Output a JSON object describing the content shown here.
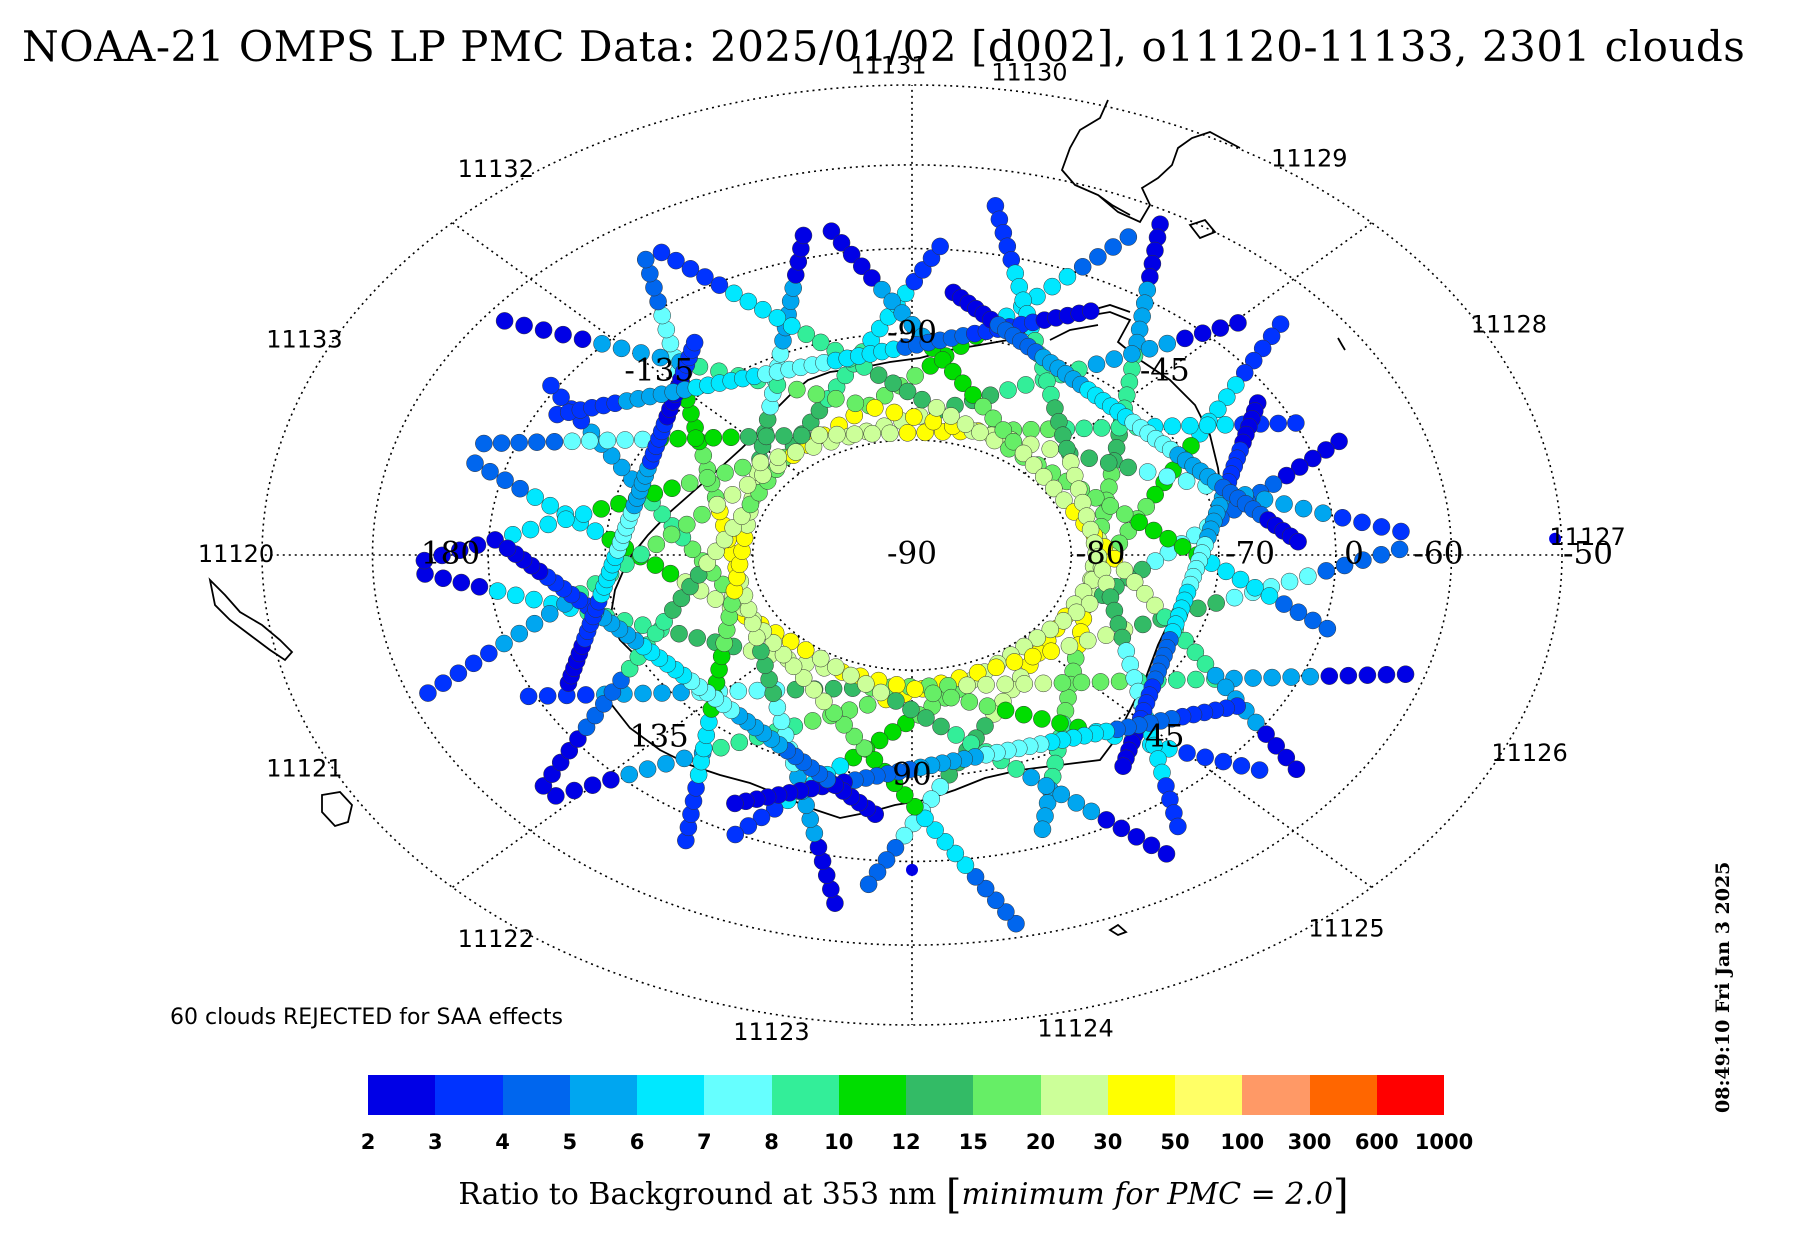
{
  "title": "NOAA-21 OMPS LP PMC Data: 2025/01/02 [d002], o11120-11133, 2301 clouds",
  "orbit_labels": [
    {
      "text": "11120",
      "angle": 180
    },
    {
      "text": "11121",
      "angle": 154
    },
    {
      "text": "11122",
      "angle": 128
    },
    {
      "text": "11123",
      "angle": 102
    },
    {
      "text": "11124",
      "angle": 76
    },
    {
      "text": "11125",
      "angle": 50
    },
    {
      "text": "11126",
      "angle": 24
    },
    {
      "text": "11127",
      "angle": -2
    },
    {
      "text": "11128",
      "angle": -28
    },
    {
      "text": "11129",
      "angle": -54
    },
    {
      "text": "11130",
      "angle": -80
    },
    {
      "text": "11131",
      "angle": -92
    },
    {
      "text": "11132",
      "angle": -128
    },
    {
      "text": "11133",
      "angle": -154
    }
  ],
  "grid_labels": [
    {
      "text": "-90",
      "angle": -90,
      "radius": 0.47
    },
    {
      "text": "-135",
      "angle": -135,
      "radius": 0.55
    },
    {
      "text": "-45",
      "angle": -45,
      "radius": 0.55
    },
    {
      "text": "180",
      "angle": 180,
      "radius": 0.71
    },
    {
      "text": "135",
      "angle": 135,
      "radius": 0.55
    },
    {
      "text": "45",
      "angle": 45,
      "radius": 0.55
    },
    {
      "text": "90",
      "angle": 90,
      "radius": 0.47
    },
    {
      "text": "-90",
      "angle": 0,
      "radius": 0.0
    },
    {
      "text": "-80",
      "angle": 0,
      "radius": 0.29
    },
    {
      "text": "-70",
      "angle": 0,
      "radius": 0.52
    },
    {
      "text": "0",
      "angle": 0,
      "radius": 0.68
    },
    {
      "text": "-60",
      "angle": 0,
      "radius": 0.81
    },
    {
      "text": "-50",
      "angle": 0,
      "radius": 1.04
    }
  ],
  "reject_note": "60 clouds REJECTED for SAA effects",
  "colorbar": {
    "colors": [
      "#0000e6",
      "#0033ff",
      "#0066ee",
      "#00a6f0",
      "#00e8ff",
      "#66ffff",
      "#33ee99",
      "#00dd00",
      "#33bb66",
      "#66ee66",
      "#ccff99",
      "#ffff00",
      "#ffff66",
      "#ff9966",
      "#ff6600",
      "#ff0000"
    ],
    "labels": [
      "2",
      "3",
      "4",
      "5",
      "6",
      "7",
      "8",
      "10",
      "12",
      "15",
      "20",
      "30",
      "50",
      "100",
      "300",
      "600",
      "1000"
    ]
  },
  "colorbar_title": {
    "main": "Ratio to Background at 353 nm",
    "open_bracket": "[",
    "note": "minimum for PMC = 2.0",
    "close_bracket": "]"
  },
  "timestamp": "08:49:10 Fri Jan  3 2025",
  "tracks": [
    {
      "angle": 8,
      "offset": 0.28,
      "start": -0.75,
      "end": 0.55,
      "colors": [
        0,
        3,
        6,
        8,
        9,
        10,
        11,
        9,
        6,
        3
      ]
    },
    {
      "angle": 28,
      "offset": 0.27,
      "start": -0.7,
      "end": 0.65,
      "colors": [
        1,
        4,
        7,
        9,
        10,
        11,
        10,
        8,
        5,
        2
      ]
    },
    {
      "angle": 48,
      "offset": 0.26,
      "start": -0.65,
      "end": 0.6,
      "colors": [
        0,
        2,
        5,
        8,
        10,
        10,
        9,
        7,
        4,
        1
      ]
    },
    {
      "angle": 68,
      "offset": 0.27,
      "start": -0.7,
      "end": 0.7,
      "colors": [
        2,
        5,
        8,
        10,
        11,
        11,
        9,
        6,
        3,
        0
      ]
    },
    {
      "angle": 88,
      "offset": 0.28,
      "start": -0.75,
      "end": 0.6,
      "colors": [
        0,
        3,
        6,
        9,
        10,
        9,
        8,
        5,
        3,
        1
      ]
    },
    {
      "angle": 108,
      "offset": 0.27,
      "start": -0.65,
      "end": 0.7,
      "colors": [
        1,
        4,
        7,
        9,
        11,
        10,
        8,
        6,
        4,
        0
      ]
    },
    {
      "angle": 128,
      "offset": 0.26,
      "start": -0.7,
      "end": 0.65,
      "colors": [
        0,
        3,
        6,
        8,
        10,
        11,
        10,
        7,
        4,
        2
      ]
    },
    {
      "angle": 148,
      "offset": 0.28,
      "start": -0.75,
      "end": 0.6,
      "colors": [
        2,
        4,
        7,
        9,
        10,
        10,
        9,
        6,
        3,
        1
      ]
    },
    {
      "angle": 168,
      "offset": 0.27,
      "start": -0.7,
      "end": 0.7,
      "colors": [
        0,
        3,
        5,
        8,
        10,
        11,
        9,
        7,
        5,
        2
      ]
    },
    {
      "angle": 188,
      "offset": 0.26,
      "start": -0.65,
      "end": 0.65,
      "colors": [
        1,
        4,
        7,
        9,
        11,
        10,
        8,
        5,
        3,
        0
      ]
    },
    {
      "angle": 208,
      "offset": 0.27,
      "start": -0.7,
      "end": 0.6,
      "colors": [
        0,
        2,
        6,
        8,
        10,
        9,
        8,
        6,
        4,
        1
      ]
    },
    {
      "angle": 228,
      "offset": 0.28,
      "start": -0.75,
      "end": 0.7,
      "colors": [
        1,
        3,
        6,
        9,
        10,
        11,
        9,
        7,
        4,
        2
      ]
    },
    {
      "angle": 248,
      "offset": 0.27,
      "start": -0.7,
      "end": 0.65,
      "colors": [
        0,
        4,
        7,
        9,
        10,
        10,
        8,
        6,
        3,
        0
      ]
    },
    {
      "angle": 268,
      "offset": 0.26,
      "start": -0.65,
      "end": 0.6,
      "colors": [
        2,
        5,
        7,
        8,
        10,
        11,
        9,
        6,
        4,
        1
      ]
    },
    {
      "angle": 288,
      "offset": 0.28,
      "start": -0.75,
      "end": 0.7,
      "colors": [
        0,
        3,
        6,
        9,
        11,
        10,
        8,
        5,
        3,
        1
      ]
    },
    {
      "angle": 308,
      "offset": 0.27,
      "start": -0.7,
      "end": 0.6,
      "colors": [
        1,
        4,
        6,
        8,
        10,
        9,
        9,
        7,
        4,
        2
      ]
    },
    {
      "angle": 328,
      "offset": 0.26,
      "start": -0.65,
      "end": 0.7,
      "colors": [
        0,
        3,
        7,
        9,
        10,
        11,
        10,
        6,
        3,
        0
      ]
    },
    {
      "angle": 348,
      "offset": 0.28,
      "start": -0.7,
      "end": 0.65,
      "colors": [
        1,
        4,
        6,
        8,
        10,
        10,
        8,
        5,
        4,
        1
      ]
    },
    {
      "angle": 15,
      "offset": 0.43,
      "start": -0.45,
      "end": 0.35,
      "colors": [
        0,
        1,
        3,
        5,
        4,
        2,
        1,
        0
      ]
    },
    {
      "angle": 75,
      "offset": 0.44,
      "start": -0.4,
      "end": 0.4,
      "colors": [
        1,
        2,
        4,
        5,
        3,
        2,
        0,
        0
      ]
    },
    {
      "angle": 135,
      "offset": 0.43,
      "start": -0.35,
      "end": 0.45,
      "colors": [
        0,
        2,
        3,
        5,
        4,
        3,
        1,
        0
      ]
    },
    {
      "angle": 195,
      "offset": 0.44,
      "start": -0.4,
      "end": 0.35,
      "colors": [
        0,
        1,
        4,
        5,
        3,
        1,
        0,
        1
      ]
    },
    {
      "angle": 255,
      "offset": 0.43,
      "start": -0.45,
      "end": 0.4,
      "colors": [
        1,
        3,
        4,
        5,
        4,
        2,
        1,
        0
      ]
    },
    {
      "angle": 315,
      "offset": 0.44,
      "start": -0.35,
      "end": 0.4,
      "colors": [
        0,
        2,
        3,
        4,
        5,
        3,
        2,
        0
      ]
    }
  ],
  "isolated_points": [
    {
      "angle": -2,
      "radius": 0.99
    },
    {
      "angle": 90,
      "radius": 0.67
    }
  ]
}
